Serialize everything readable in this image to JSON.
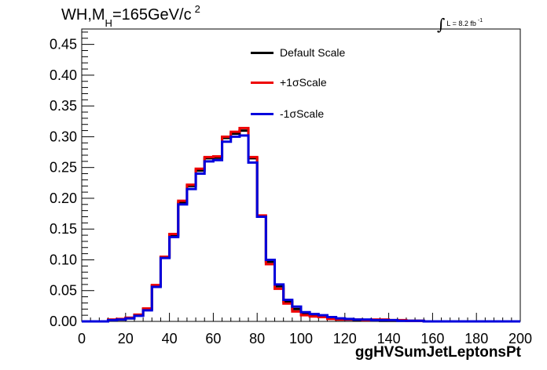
{
  "title": {
    "prefix": "WH,M",
    "subscript": "H",
    "value": "=165GeV/c",
    "superscript": "2"
  },
  "luminosity": {
    "integral": "∫",
    "text": "L = 8.2 fb",
    "superscript": "-1"
  },
  "chart_data": {
    "type": "line",
    "xlabel": "ggHVSumJetLeptonsPt",
    "ylabel": "",
    "xlim": [
      0,
      200
    ],
    "ylim": [
      0,
      0.475
    ],
    "xticks": [
      "0",
      "20",
      "40",
      "60",
      "80",
      "100",
      "120",
      "140",
      "160",
      "180",
      "200"
    ],
    "yticks": [
      "0.00",
      "0.05",
      "0.10",
      "0.15",
      "0.20",
      "0.25",
      "0.30",
      "0.35",
      "0.40",
      "0.45"
    ],
    "bin_edges": [
      0,
      4,
      8,
      12,
      16,
      20,
      24,
      28,
      32,
      36,
      40,
      44,
      48,
      52,
      56,
      60,
      64,
      68,
      72,
      76,
      80,
      84,
      88,
      92,
      96,
      100,
      104,
      108,
      112,
      116,
      120,
      124,
      128,
      132,
      136,
      140,
      144,
      148,
      152,
      156,
      160,
      164,
      168,
      172,
      176,
      180,
      184,
      188,
      192,
      196,
      200
    ],
    "legend_position": "top-center",
    "grid": false,
    "series": [
      {
        "name": "Default Scale",
        "color": "#000000",
        "values": [
          0,
          0,
          0,
          0.002,
          0.003,
          0.005,
          0.01,
          0.02,
          0.058,
          0.104,
          0.14,
          0.193,
          0.22,
          0.245,
          0.265,
          0.266,
          0.298,
          0.305,
          0.31,
          0.265,
          0.17,
          0.097,
          0.057,
          0.032,
          0.02,
          0.012,
          0.01,
          0.008,
          0.005,
          0.003,
          0.003,
          0.002,
          0.002,
          0.002,
          0.001,
          0.001,
          0.001,
          0.001,
          0.001,
          0,
          0,
          0,
          0,
          0,
          0,
          0,
          0,
          0,
          0,
          0
        ]
      },
      {
        "name": "+1σScale",
        "color": "#ee0000",
        "values": [
          0,
          0,
          0,
          0.003,
          0.004,
          0.006,
          0.011,
          0.021,
          0.059,
          0.105,
          0.142,
          0.196,
          0.222,
          0.248,
          0.267,
          0.268,
          0.3,
          0.308,
          0.314,
          0.267,
          0.172,
          0.093,
          0.053,
          0.029,
          0.016,
          0.01,
          0.008,
          0.007,
          0.004,
          0.003,
          0.003,
          0.003,
          0.002,
          0.003,
          0.003,
          0.002,
          0.002,
          0.001,
          0.001,
          0,
          0,
          0,
          0,
          0,
          0,
          0,
          0,
          0,
          0,
          0
        ]
      },
      {
        "name": "-1σScale",
        "color": "#0000dd",
        "values": [
          0,
          0,
          0,
          0.002,
          0.003,
          0.005,
          0.009,
          0.018,
          0.056,
          0.103,
          0.137,
          0.19,
          0.215,
          0.24,
          0.26,
          0.262,
          0.292,
          0.3,
          0.302,
          0.258,
          0.17,
          0.1,
          0.06,
          0.035,
          0.024,
          0.015,
          0.012,
          0.01,
          0.007,
          0.005,
          0.004,
          0.003,
          0.003,
          0.002,
          0.002,
          0.002,
          0.001,
          0.001,
          0.001,
          0,
          0,
          0,
          0,
          0,
          0,
          0,
          0,
          0,
          0,
          0
        ]
      }
    ]
  }
}
